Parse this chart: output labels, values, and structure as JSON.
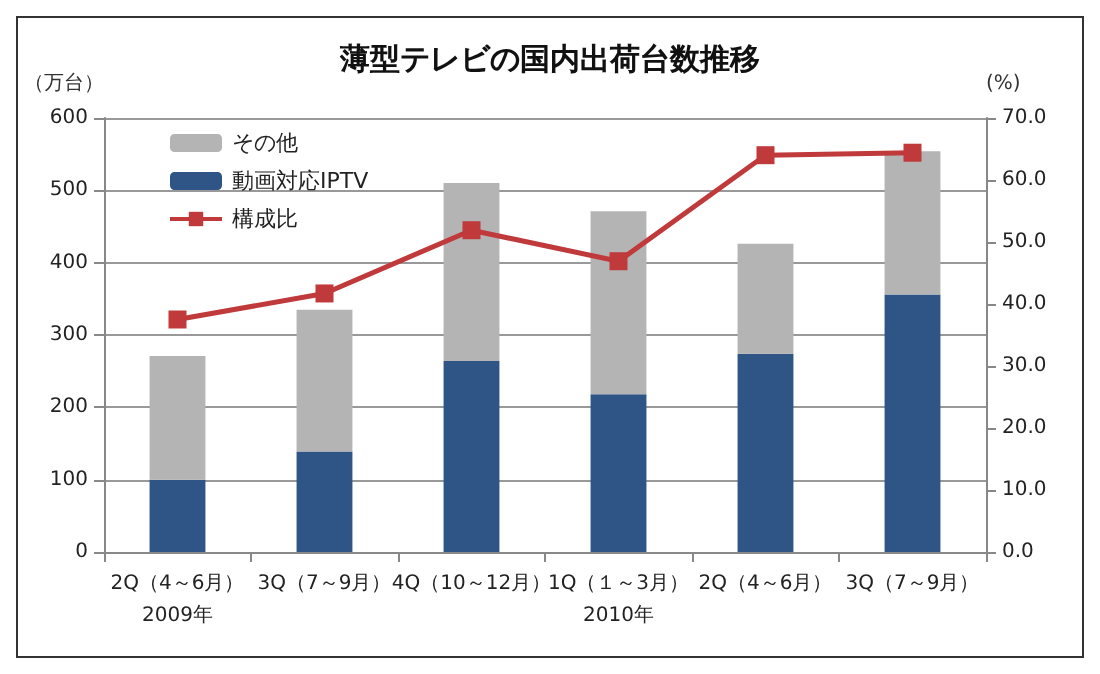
{
  "chart_data": {
    "type": "bar",
    "title": "薄型テレビの国内出荷台数推移",
    "ylabel": "（万台）",
    "y2label": "(%)",
    "categories": [
      "2Q（4～6月）\n2009年",
      "3Q（7～9月）",
      "4Q（10～12月）",
      "1Q（１～3月）\n2010年",
      "2Q（4～6月）",
      "3Q（7～9月）"
    ],
    "stacked": true,
    "series": [
      {
        "name": "動画対応IPTV",
        "color": "#2f5587",
        "values": [
          100,
          139,
          264,
          218,
          274,
          356
        ]
      },
      {
        "name": "その他",
        "color": "#b4b4b4",
        "values": [
          171,
          196,
          246,
          253,
          152,
          198
        ]
      },
      {
        "name": "構成比",
        "type": "line",
        "axis": "y2",
        "color": "#c0393b",
        "marker": "square",
        "values": [
          37.5,
          41.7,
          51.9,
          46.9,
          64.0,
          64.4
        ]
      }
    ],
    "ylim": [
      0,
      600
    ],
    "yticks": [
      0,
      100,
      200,
      300,
      400,
      500,
      600
    ],
    "y2lim": [
      0,
      70
    ],
    "y2ticks": [
      {
        "value": 0,
        "label": "0.0"
      },
      {
        "value": 10,
        "label": "10.0"
      },
      {
        "value": 20,
        "label": "20.0"
      },
      {
        "value": 30,
        "label": "30.0"
      },
      {
        "value": 40,
        "label": "40.0"
      },
      {
        "value": 50,
        "label": "50.0"
      },
      {
        "value": 60,
        "label": "60.0"
      },
      {
        "value": 70,
        "label": "70.0"
      }
    ],
    "grid": "y",
    "legend": "top left"
  }
}
